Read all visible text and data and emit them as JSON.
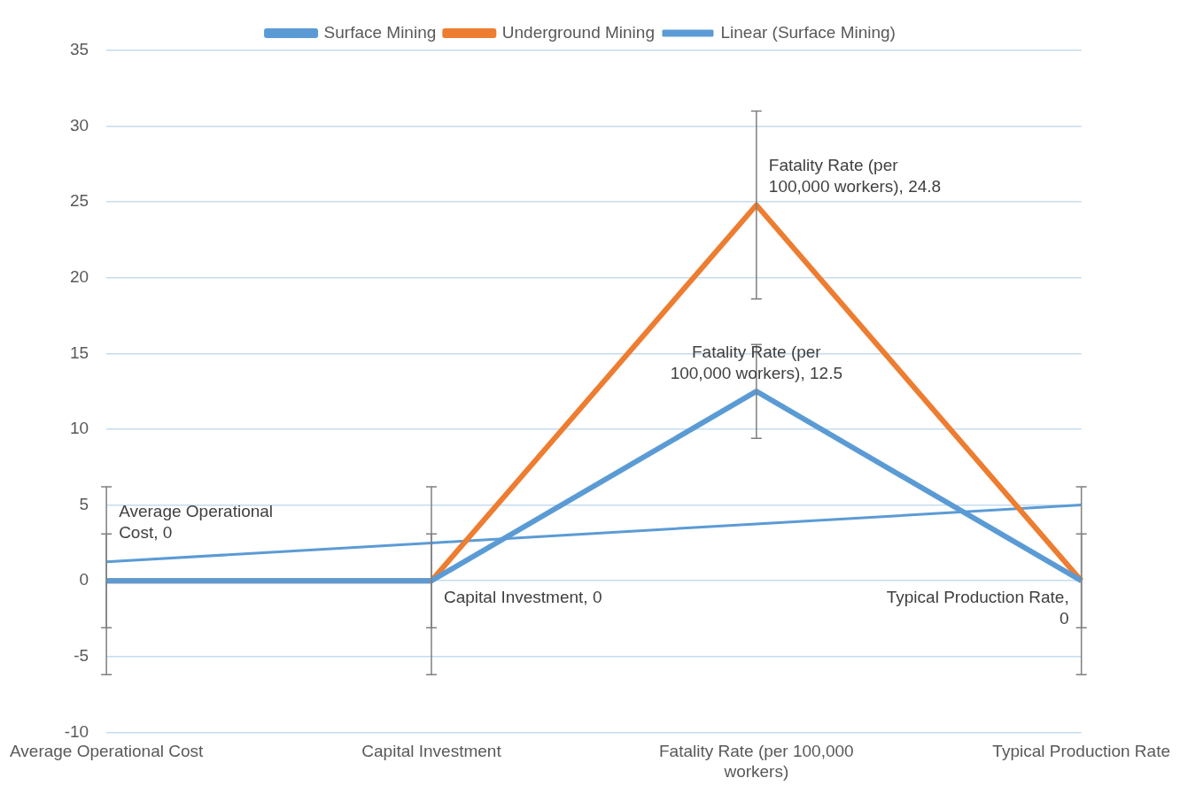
{
  "chart_data": {
    "type": "line",
    "categories": [
      "Average Operational Cost",
      "Capital Investment",
      "Fatality Rate (per 100,000 workers)",
      "Typical Production Rate"
    ],
    "series": [
      {
        "name": "Surface Mining",
        "color": "#5b9bd5",
        "values": [
          0,
          0,
          12.5,
          0
        ],
        "errors": [
          6.2,
          6.2,
          3.1,
          6.2
        ],
        "value_labels": [
          "Average Operational Cost, 0",
          null,
          "Fatality Rate (per 100,000 workers), 12.5",
          "Typical Production Rate, 0"
        ]
      },
      {
        "name": "Underground Mining",
        "color": "#ed7d31",
        "values": [
          0,
          0,
          24.8,
          0
        ],
        "errors": [
          3.1,
          3.1,
          6.2,
          3.1
        ],
        "value_labels": [
          null,
          "Capital Investment, 0",
          "Fatality Rate (per 100,000 workers), 24.8",
          null
        ]
      },
      {
        "name": "Linear (Surface Mining)",
        "type": "line",
        "color": "#5b9bd5",
        "values": [
          1.25,
          2.5,
          3.75,
          5
        ]
      }
    ],
    "ylim": [
      -10,
      35
    ],
    "yticks": [
      -10,
      -5,
      0,
      5,
      10,
      15,
      20,
      25,
      30,
      35
    ],
    "grid": "y",
    "legend": "top",
    "marker": "none",
    "line_style": "solid"
  }
}
